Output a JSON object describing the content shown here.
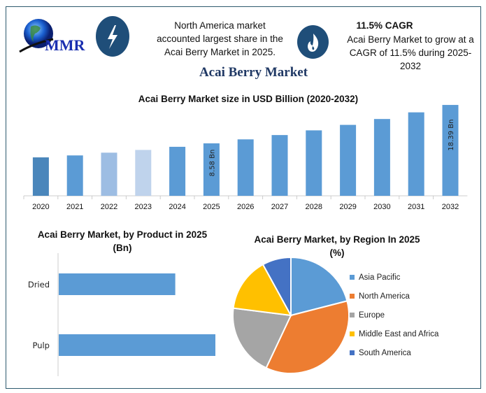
{
  "header": {
    "logo_text": "MMR",
    "highlight_1": "North America market accounted largest share in the Acai Berry Market in 2025.",
    "highlight_2_title": "11.5% CAGR",
    "highlight_2": "Acai Berry Market to grow at a CAGR of 11.5% during 2025-2032",
    "icon_1": "lightning-icon",
    "icon_2": "flame-icon",
    "main_title": "Acai Berry Market"
  },
  "colors": {
    "bar": "#5b9bd5",
    "bar_2020": "#4a86bb",
    "bar_2022": "#9dbde3",
    "bar_2023": "#bfd3ec",
    "icon_circle": "#1f4e79"
  },
  "chart_data": [
    {
      "type": "bar",
      "title": "Acai Berry Market size in USD Billion (2020-2032)",
      "categories": [
        "2020",
        "2021",
        "2022",
        "2023",
        "2024",
        "2025",
        "2026",
        "2027",
        "2028",
        "2029",
        "2030",
        "2031",
        "2032"
      ],
      "values": [
        5.0,
        5.5,
        6.2,
        6.9,
        7.7,
        8.58,
        9.6,
        10.7,
        11.9,
        13.3,
        14.8,
        16.5,
        18.39
      ],
      "data_labels": {
        "2025": "8.58 Bn",
        "2032": "18.39 Bn"
      },
      "grid": false
    },
    {
      "type": "bar",
      "orientation": "horizontal",
      "title": "Acai Berry Market, by Product in 2025 (Bn)",
      "categories": [
        "Dried",
        "Pulp"
      ],
      "values": [
        3.66,
        4.92
      ]
    },
    {
      "type": "pie",
      "title": "Acai Berry Market, by Region In 2025 (%)",
      "categories": [
        "Asia Pacific",
        "North America",
        "Europe",
        "Middle East and Africa",
        "South America"
      ],
      "values": [
        21,
        36,
        20,
        15,
        8
      ],
      "colors": [
        "#5b9bd5",
        "#ed7d31",
        "#a5a5a5",
        "#ffc000",
        "#4472c4"
      ],
      "legend": "right"
    }
  ]
}
